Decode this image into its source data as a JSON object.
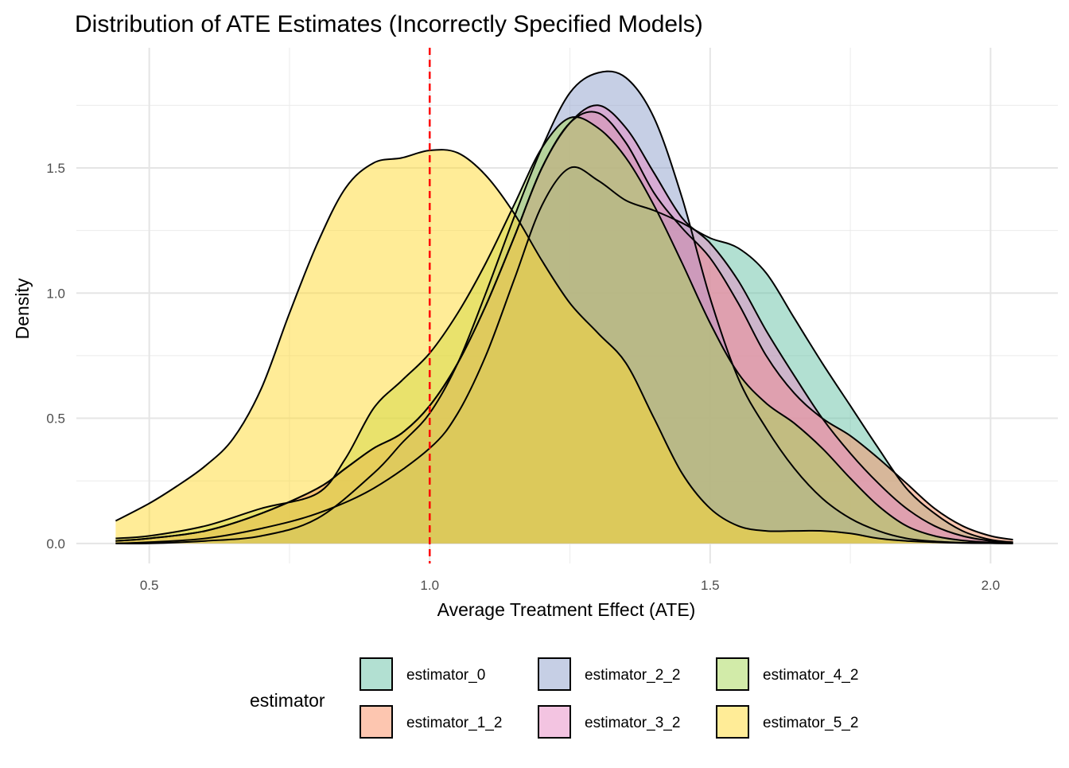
{
  "chart_data": {
    "type": "area",
    "subtype": "density",
    "title": "Distribution of ATE Estimates (Incorrectly Specified Models)",
    "xlabel": "Average Treatment Effect (ATE)",
    "ylabel": "Density",
    "xlim": [
      0.37,
      2.12
    ],
    "ylim": [
      -0.08,
      1.98
    ],
    "x_ticks": [
      0.5,
      1.0,
      1.5,
      2.0
    ],
    "x_tick_labels": [
      "0.5",
      "1.0",
      "1.5",
      "2.0"
    ],
    "y_ticks": [
      0.0,
      0.5,
      1.0,
      1.5
    ],
    "y_tick_labels": [
      "0.0",
      "0.5",
      "1.0",
      "1.5"
    ],
    "x_minor_ticks": [
      0.75,
      1.25,
      1.75
    ],
    "y_minor_ticks": [
      0.25,
      0.75,
      1.25,
      1.75
    ],
    "grid": true,
    "fill_opacity": 0.5,
    "reference_line": {
      "x": 1.0,
      "color": "#ff0000",
      "style": "dashed"
    },
    "legend": {
      "title": "estimator",
      "position": "bottom",
      "columns": 3
    },
    "series": [
      {
        "name": "estimator_0",
        "color": "#66c2a5",
        "x": [
          0.44,
          0.5,
          0.6,
          0.7,
          0.8,
          0.9,
          1.0,
          1.05,
          1.1,
          1.15,
          1.2,
          1.25,
          1.3,
          1.35,
          1.4,
          1.45,
          1.5,
          1.55,
          1.6,
          1.65,
          1.7,
          1.75,
          1.8,
          1.85,
          1.9,
          1.95,
          2.0,
          2.04
        ],
        "y": [
          0.0,
          0.005,
          0.02,
          0.06,
          0.12,
          0.22,
          0.38,
          0.52,
          0.75,
          1.05,
          1.35,
          1.5,
          1.45,
          1.37,
          1.33,
          1.28,
          1.22,
          1.18,
          1.08,
          0.9,
          0.72,
          0.55,
          0.38,
          0.22,
          0.12,
          0.05,
          0.015,
          0.005
        ]
      },
      {
        "name": "estimator_1_2",
        "color": "#fc8d62",
        "x": [
          0.44,
          0.5,
          0.6,
          0.7,
          0.8,
          0.85,
          0.9,
          0.95,
          1.0,
          1.05,
          1.1,
          1.15,
          1.2,
          1.25,
          1.3,
          1.35,
          1.4,
          1.45,
          1.5,
          1.55,
          1.6,
          1.65,
          1.7,
          1.75,
          1.8,
          1.85,
          1.9,
          1.95,
          2.0,
          2.04
        ],
        "y": [
          0.01,
          0.02,
          0.05,
          0.12,
          0.22,
          0.3,
          0.38,
          0.44,
          0.55,
          0.72,
          0.95,
          1.22,
          1.5,
          1.68,
          1.72,
          1.6,
          1.4,
          1.26,
          1.14,
          0.96,
          0.75,
          0.6,
          0.5,
          0.43,
          0.34,
          0.24,
          0.14,
          0.07,
          0.03,
          0.015
        ]
      },
      {
        "name": "estimator_2_2",
        "color": "#8da0cb",
        "x": [
          0.44,
          0.5,
          0.6,
          0.7,
          0.8,
          0.9,
          0.95,
          1.0,
          1.05,
          1.1,
          1.15,
          1.2,
          1.25,
          1.3,
          1.35,
          1.4,
          1.45,
          1.5,
          1.55,
          1.6,
          1.65,
          1.7,
          1.75,
          1.8,
          1.85,
          1.9,
          1.95,
          2.0,
          2.04
        ],
        "y": [
          0.0,
          0.0,
          0.01,
          0.03,
          0.1,
          0.28,
          0.4,
          0.52,
          0.72,
          1.0,
          1.3,
          1.58,
          1.8,
          1.88,
          1.86,
          1.7,
          1.38,
          0.98,
          0.66,
          0.46,
          0.3,
          0.18,
          0.1,
          0.05,
          0.02,
          0.008,
          0.003,
          0.001,
          0.0
        ]
      },
      {
        "name": "estimator_3_2",
        "color": "#e78ac3",
        "x": [
          0.44,
          0.5,
          0.6,
          0.7,
          0.8,
          0.85,
          0.9,
          0.95,
          1.0,
          1.05,
          1.1,
          1.15,
          1.2,
          1.25,
          1.3,
          1.35,
          1.4,
          1.45,
          1.5,
          1.55,
          1.6,
          1.65,
          1.7,
          1.75,
          1.8,
          1.85,
          1.9,
          1.95,
          2.0,
          2.04
        ],
        "y": [
          0.01,
          0.02,
          0.05,
          0.12,
          0.22,
          0.3,
          0.38,
          0.44,
          0.55,
          0.72,
          0.95,
          1.22,
          1.5,
          1.68,
          1.75,
          1.66,
          1.48,
          1.3,
          1.2,
          1.05,
          0.85,
          0.67,
          0.5,
          0.36,
          0.24,
          0.14,
          0.07,
          0.03,
          0.01,
          0.004
        ]
      },
      {
        "name": "estimator_4_2",
        "color": "#a6d854",
        "x": [
          0.44,
          0.5,
          0.6,
          0.7,
          0.8,
          0.85,
          0.9,
          0.95,
          1.0,
          1.05,
          1.1,
          1.15,
          1.2,
          1.25,
          1.3,
          1.35,
          1.4,
          1.45,
          1.5,
          1.55,
          1.6,
          1.65,
          1.7,
          1.75,
          1.8,
          1.85,
          1.9,
          1.95,
          2.0,
          2.04
        ],
        "y": [
          0.02,
          0.03,
          0.07,
          0.14,
          0.2,
          0.34,
          0.54,
          0.65,
          0.76,
          0.92,
          1.12,
          1.35,
          1.58,
          1.7,
          1.66,
          1.54,
          1.35,
          1.12,
          0.88,
          0.68,
          0.56,
          0.48,
          0.38,
          0.26,
          0.15,
          0.07,
          0.03,
          0.012,
          0.004,
          0.001
        ]
      },
      {
        "name": "estimator_5_2",
        "color": "#ffd92f",
        "x": [
          0.44,
          0.5,
          0.55,
          0.6,
          0.65,
          0.7,
          0.75,
          0.8,
          0.85,
          0.9,
          0.95,
          1.0,
          1.05,
          1.1,
          1.15,
          1.2,
          1.25,
          1.3,
          1.35,
          1.4,
          1.45,
          1.5,
          1.55,
          1.6,
          1.65,
          1.7,
          1.75,
          1.8,
          1.85,
          1.9,
          1.95,
          2.0,
          2.04
        ],
        "y": [
          0.09,
          0.16,
          0.23,
          0.31,
          0.42,
          0.62,
          0.92,
          1.2,
          1.42,
          1.52,
          1.54,
          1.57,
          1.56,
          1.47,
          1.32,
          1.13,
          0.96,
          0.84,
          0.72,
          0.5,
          0.28,
          0.14,
          0.07,
          0.05,
          0.05,
          0.05,
          0.04,
          0.02,
          0.01,
          0.005,
          0.002,
          0.001,
          0.0
        ]
      }
    ]
  }
}
